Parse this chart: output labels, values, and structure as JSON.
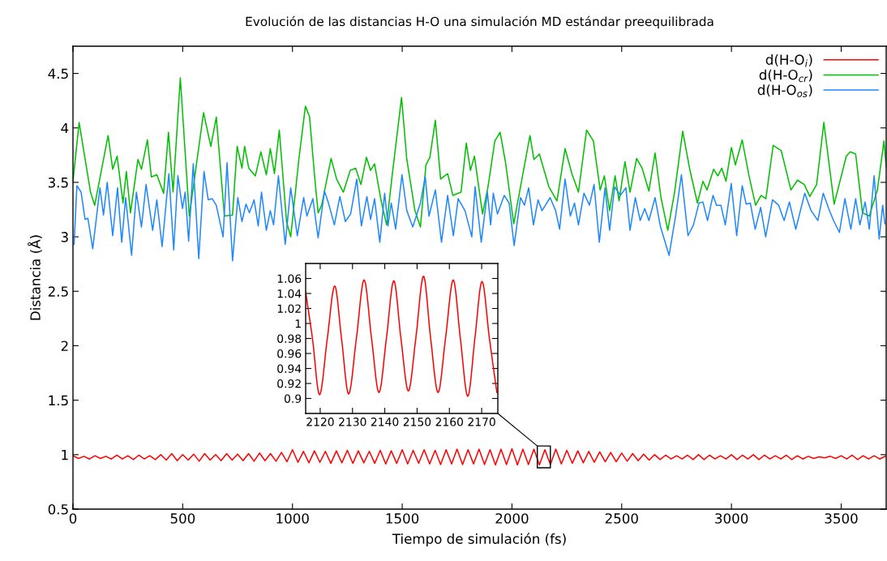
{
  "chart_data": [
    {
      "type": "line",
      "title": "Evolución de las distancias H-O una simulación MD estándar preequilibrada",
      "xlabel": "Tiempo de simulación (fs)",
      "ylabel": "Distancia (Å)",
      "xlim": [
        0,
        3705
      ],
      "ylim": [
        0.5,
        4.75
      ],
      "xticks": [
        0,
        500,
        1000,
        1500,
        2000,
        2500,
        3000,
        3500
      ],
      "yticks": [
        0.5,
        1,
        1.5,
        2,
        2.5,
        3,
        3.5,
        4,
        4.5
      ],
      "legend": "top right",
      "grid": false,
      "series": [
        {
          "name": "d(H-O$_{i}$)",
          "color": "#ff0000",
          "x": [
            0,
            25,
            50,
            75,
            100,
            125,
            150,
            175,
            200,
            225,
            250,
            275,
            300,
            325,
            350,
            375,
            400,
            425,
            450,
            475,
            500,
            525,
            550,
            575,
            600,
            625,
            650,
            675,
            700,
            725,
            750,
            775,
            800,
            825,
            850,
            875,
            900,
            925,
            950,
            975,
            1000,
            1025,
            1050,
            1075,
            1100,
            1125,
            1150,
            1175,
            1200,
            1225,
            1250,
            1275,
            1300,
            1325,
            1350,
            1375,
            1400,
            1425,
            1450,
            1475,
            1500,
            1525,
            1550,
            1575,
            1600,
            1625,
            1650,
            1675,
            1700,
            1725,
            1750,
            1775,
            1800,
            1825,
            1850,
            1875,
            1900,
            1925,
            1950,
            1975,
            2000,
            2025,
            2050,
            2075,
            2100,
            2125,
            2150,
            2175,
            2200,
            2225,
            2250,
            2275,
            2300,
            2325,
            2350,
            2375,
            2400,
            2425,
            2450,
            2475,
            2500,
            2525,
            2550,
            2575,
            2600,
            2625,
            2650,
            2675,
            2700,
            2725,
            2750,
            2775,
            2800,
            2825,
            2850,
            2875,
            2900,
            2925,
            2950,
            2975,
            3000,
            3025,
            3050,
            3075,
            3100,
            3125,
            3150,
            3175,
            3200,
            3225,
            3250,
            3275,
            3300,
            3325,
            3350,
            3375,
            3400,
            3425,
            3450,
            3475,
            3500,
            3525,
            3550,
            3575,
            3600,
            3625,
            3650,
            3675,
            3700
          ],
          "values": [
            0.99,
            0.965,
            0.985,
            0.96,
            0.99,
            0.965,
            0.985,
            0.96,
            0.995,
            0.96,
            0.99,
            0.955,
            0.995,
            0.96,
            0.99,
            0.955,
            1.0,
            0.95,
            1.01,
            0.945,
            1.0,
            0.95,
            1.005,
            0.94,
            1.01,
            0.95,
            1.0,
            0.945,
            1.01,
            0.95,
            1.005,
            0.945,
            1.01,
            0.94,
            1.015,
            0.945,
            1.01,
            0.94,
            1.02,
            0.935,
            1.045,
            0.93,
            1.03,
            0.925,
            1.035,
            0.93,
            1.03,
            0.92,
            1.035,
            0.925,
            1.04,
            0.92,
            1.035,
            0.925,
            1.03,
            0.92,
            1.04,
            0.915,
            1.035,
            0.92,
            1.045,
            0.915,
            1.04,
            0.92,
            1.045,
            0.915,
            1.04,
            0.91,
            1.045,
            0.915,
            1.05,
            0.91,
            1.045,
            0.915,
            1.05,
            0.91,
            1.045,
            0.905,
            1.05,
            0.91,
            1.055,
            0.905,
            1.05,
            0.91,
            1.05,
            0.905,
            1.045,
            0.91,
            1.05,
            0.915,
            1.04,
            0.92,
            1.035,
            0.925,
            1.03,
            0.93,
            1.025,
            0.935,
            1.02,
            0.935,
            1.015,
            0.94,
            1.01,
            0.945,
            1.005,
            0.95,
            1.0,
            0.955,
            0.995,
            0.96,
            0.99,
            0.96,
            0.995,
            0.955,
            1.0,
            0.955,
            0.995,
            0.96,
            0.99,
            0.96,
            1.0,
            0.955,
            0.995,
            0.96,
            1.0,
            0.955,
            0.995,
            0.96,
            0.99,
            0.96,
            0.995,
            0.955,
            0.99,
            0.96,
            0.985,
            0.965,
            0.98,
            0.97,
            0.985,
            0.965,
            0.99,
            0.96,
            0.995,
            0.955,
            0.99,
            0.96,
            0.99,
            0.96,
            0.985
          ]
        },
        {
          "name": "d(H-O$_{cr}$)",
          "color": "#00c000",
          "x": [
            0,
            28,
            80,
            99,
            160,
            181,
            201,
            228,
            243,
            262,
            296,
            312,
            339,
            357,
            382,
            413,
            435,
            456,
            489,
            530,
            595,
            628,
            653,
            690,
            727,
            748,
            770,
            782,
            801,
            831,
            856,
            881,
            899,
            918,
            940,
            973,
            992,
            1029,
            1059,
            1078,
            1102,
            1117,
            1133,
            1176,
            1201,
            1232,
            1263,
            1288,
            1312,
            1337,
            1356,
            1374,
            1404,
            1429,
            1454,
            1497,
            1521,
            1558,
            1583,
            1608,
            1626,
            1651,
            1675,
            1707,
            1731,
            1768,
            1792,
            1811,
            1829,
            1866,
            1891,
            1922,
            1946,
            1971,
            2008,
            2082,
            2100,
            2125,
            2168,
            2205,
            2242,
            2273,
            2303,
            2340,
            2371,
            2402,
            2421,
            2445,
            2470,
            2488,
            2515,
            2538,
            2568,
            2593,
            2624,
            2652,
            2679,
            2710,
            2741,
            2778,
            2809,
            2845,
            2870,
            2889,
            2919,
            2938,
            2956,
            2975,
            3000,
            3018,
            3049,
            3080,
            3110,
            3135,
            3157,
            3190,
            3227,
            3271,
            3301,
            3332,
            3357,
            3388,
            3421,
            3468,
            3523,
            3541,
            3566,
            3597,
            3628,
            3665,
            3695,
            3705
          ],
          "values": [
            3.51,
            4.05,
            3.41,
            3.29,
            3.93,
            3.62,
            3.74,
            3.31,
            3.6,
            3.22,
            3.71,
            3.62,
            3.89,
            3.55,
            3.57,
            3.4,
            3.96,
            3.41,
            4.46,
            3.19,
            4.14,
            3.83,
            4.1,
            3.19,
            3.2,
            3.83,
            3.63,
            3.83,
            3.63,
            3.56,
            3.78,
            3.57,
            3.81,
            3.58,
            3.98,
            3.14,
            3.0,
            3.71,
            4.2,
            4.1,
            3.53,
            3.22,
            3.29,
            3.72,
            3.53,
            3.41,
            3.61,
            3.63,
            3.48,
            3.73,
            3.61,
            3.67,
            3.33,
            3.11,
            3.56,
            4.28,
            3.71,
            3.24,
            3.09,
            3.66,
            3.73,
            4.07,
            3.53,
            3.58,
            3.38,
            3.41,
            3.86,
            3.61,
            3.74,
            3.21,
            3.46,
            3.88,
            3.96,
            3.68,
            3.12,
            3.93,
            3.71,
            3.76,
            3.46,
            3.33,
            3.81,
            3.58,
            3.41,
            3.98,
            3.88,
            3.43,
            3.56,
            3.24,
            3.56,
            3.33,
            3.69,
            3.41,
            3.72,
            3.63,
            3.42,
            3.77,
            3.36,
            3.06,
            3.41,
            3.97,
            3.63,
            3.31,
            3.51,
            3.43,
            3.62,
            3.56,
            3.63,
            3.51,
            3.82,
            3.66,
            3.89,
            3.56,
            3.29,
            3.38,
            3.35,
            3.84,
            3.79,
            3.43,
            3.52,
            3.48,
            3.37,
            3.48,
            4.05,
            3.3,
            3.74,
            3.78,
            3.76,
            3.22,
            3.19,
            3.43,
            3.88,
            3.64
          ]
        },
        {
          "name": "d(H-O$_{os}$)",
          "color": "#1e88ff",
          "x": [
            5,
            18,
            37,
            55,
            68,
            90,
            123,
            139,
            156,
            181,
            203,
            222,
            240,
            267,
            289,
            312,
            333,
            363,
            382,
            406,
            437,
            459,
            478,
            499,
            511,
            527,
            548,
            573,
            597,
            616,
            634,
            653,
            684,
            702,
            727,
            751,
            770,
            788,
            804,
            825,
            844,
            859,
            881,
            899,
            914,
            936,
            967,
            992,
            1022,
            1051,
            1066,
            1093,
            1117,
            1146,
            1164,
            1191,
            1216,
            1241,
            1265,
            1293,
            1314,
            1339,
            1356,
            1374,
            1398,
            1420,
            1435,
            1450,
            1470,
            1499,
            1521,
            1548,
            1583,
            1605,
            1622,
            1651,
            1679,
            1707,
            1733,
            1755,
            1786,
            1817,
            1832,
            1860,
            1888,
            1903,
            1915,
            1934,
            1965,
            1987,
            2010,
            2039,
            2057,
            2076,
            2098,
            2119,
            2137,
            2174,
            2199,
            2217,
            2242,
            2266,
            2285,
            2303,
            2328,
            2353,
            2374,
            2398,
            2424,
            2445,
            2468,
            2494,
            2519,
            2538,
            2562,
            2584,
            2605,
            2624,
            2652,
            2677,
            2689,
            2716,
            2747,
            2772,
            2802,
            2827,
            2852,
            2870,
            2891,
            2916,
            2932,
            2952,
            2972,
            2999,
            3024,
            3049,
            3067,
            3086,
            3108,
            3133,
            3156,
            3187,
            3215,
            3240,
            3264,
            3293,
            3334,
            3363,
            3394,
            3418,
            3443,
            3465,
            3492,
            3517,
            3544,
            3566,
            3585,
            3609,
            3628,
            3650,
            3673,
            3689,
            3699
          ],
          "values": [
            2.93,
            3.47,
            3.41,
            3.16,
            3.17,
            2.89,
            3.45,
            3.2,
            3.5,
            3.01,
            3.45,
            2.95,
            3.36,
            2.83,
            3.41,
            3.09,
            3.48,
            3.06,
            3.34,
            2.91,
            3.58,
            2.88,
            3.56,
            3.26,
            3.41,
            2.96,
            3.67,
            2.8,
            3.6,
            3.34,
            3.35,
            3.29,
            3.0,
            3.68,
            2.78,
            3.36,
            3.14,
            3.3,
            3.22,
            3.34,
            3.1,
            3.41,
            3.06,
            3.24,
            3.11,
            3.56,
            2.93,
            3.45,
            3.01,
            3.36,
            3.19,
            3.35,
            2.99,
            3.42,
            3.31,
            3.11,
            3.37,
            3.14,
            3.21,
            3.53,
            3.1,
            3.37,
            3.16,
            3.35,
            2.95,
            3.4,
            3.1,
            3.31,
            3.07,
            3.57,
            3.24,
            3.09,
            3.31,
            3.55,
            3.19,
            3.43,
            2.95,
            3.38,
            3.01,
            3.35,
            3.24,
            3.0,
            3.46,
            2.95,
            3.41,
            3.11,
            3.4,
            3.21,
            3.38,
            3.31,
            2.92,
            3.36,
            3.29,
            3.45,
            3.11,
            3.34,
            3.24,
            3.36,
            3.24,
            3.07,
            3.53,
            3.19,
            3.31,
            3.11,
            3.4,
            3.29,
            3.48,
            2.95,
            3.45,
            3.06,
            3.46,
            3.38,
            3.45,
            3.06,
            3.36,
            3.15,
            3.26,
            3.15,
            3.36,
            3.09,
            3.01,
            2.83,
            3.21,
            3.57,
            3.01,
            3.11,
            3.31,
            3.32,
            3.15,
            3.38,
            3.29,
            3.29,
            3.11,
            3.49,
            3.01,
            3.47,
            3.3,
            3.31,
            3.07,
            3.27,
            3.0,
            3.34,
            3.29,
            3.15,
            3.32,
            3.07,
            3.4,
            3.24,
            3.15,
            3.4,
            3.26,
            3.15,
            3.04,
            3.35,
            3.07,
            3.35,
            3.11,
            3.32,
            3.07,
            3.56,
            2.98,
            3.29,
            3.12
          ]
        }
      ]
    },
    {
      "type": "line",
      "xlim": [
        2115.5,
        2175
      ],
      "ylim": [
        0.88,
        1.08
      ],
      "xticks": [
        2120,
        2130,
        2140,
        2150,
        2160,
        2170
      ],
      "yticks": [
        0.9,
        0.92,
        0.94,
        0.96,
        0.98,
        1,
        1.02,
        1.04,
        1.06
      ],
      "grid": false,
      "series": [
        {
          "color": "#ff0000",
          "x": [
            2115.5,
            2117.6,
            2119.8,
            2122.2,
            2124.5,
            2126.6,
            2128.8,
            2131.2,
            2133.6,
            2135.9,
            2138.2,
            2140.5,
            2142.8,
            2145.0,
            2147.3,
            2149.6,
            2152.0,
            2154.2,
            2156.5,
            2158.8,
            2161.2,
            2163.4,
            2165.7,
            2167.9,
            2170.1,
            2172.4,
            2174.7
          ],
          "values": [
            1.042,
            0.98,
            0.905,
            0.98,
            1.05,
            0.98,
            0.906,
            0.98,
            1.058,
            0.98,
            0.908,
            0.98,
            1.057,
            0.98,
            0.91,
            0.98,
            1.063,
            0.98,
            0.908,
            0.98,
            1.058,
            0.98,
            0.903,
            0.98,
            1.056,
            0.98,
            0.908
          ]
        }
      ]
    }
  ]
}
